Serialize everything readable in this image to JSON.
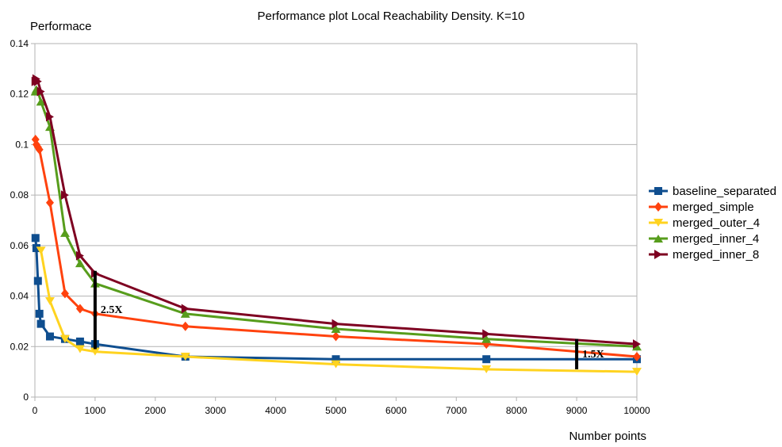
{
  "chart_data": {
    "type": "line",
    "title": "Performance plot Local Reachability Density. K=10",
    "xlabel": "Number points",
    "ylabel": "Performace",
    "xlim": [
      0,
      10000
    ],
    "ylim": [
      0,
      0.14
    ],
    "x_ticks": [
      "0",
      "1000",
      "2000",
      "3000",
      "4000",
      "5000",
      "6000",
      "7000",
      "8000",
      "9000",
      "10000"
    ],
    "y_ticks": [
      "0",
      "0.02",
      "0.04",
      "0.06",
      "0.08",
      "0.1",
      "0.12",
      "0.14"
    ],
    "grid": "horizontal",
    "legend_position": "right",
    "series": [
      {
        "name": "baseline_separated",
        "color": "#0f4e8f",
        "marker": "square",
        "points": [
          [
            10,
            0.063
          ],
          [
            25,
            0.059
          ],
          [
            50,
            0.046
          ],
          [
            75,
            0.033
          ],
          [
            100,
            0.029
          ],
          [
            250,
            0.024
          ],
          [
            500,
            0.023
          ],
          [
            750,
            0.022
          ],
          [
            1000,
            0.021
          ],
          [
            2500,
            0.016
          ],
          [
            5000,
            0.015
          ],
          [
            7500,
            0.015
          ],
          [
            10000,
            0.015
          ]
        ]
      },
      {
        "name": "merged_simple",
        "color": "#ff420e",
        "marker": "diamond",
        "points": [
          [
            10,
            0.102
          ],
          [
            25,
            0.1
          ],
          [
            50,
            0.099
          ],
          [
            75,
            0.098
          ],
          [
            250,
            0.077
          ],
          [
            500,
            0.041
          ],
          [
            750,
            0.035
          ],
          [
            1000,
            0.033
          ],
          [
            2500,
            0.028
          ],
          [
            5000,
            0.024
          ],
          [
            7500,
            0.021
          ],
          [
            10000,
            0.016
          ]
        ]
      },
      {
        "name": "merged_outer_4",
        "color": "#ffd320",
        "marker": "triangle-down",
        "points": [
          [
            100,
            0.058
          ],
          [
            250,
            0.038
          ],
          [
            500,
            0.023
          ],
          [
            750,
            0.019
          ],
          [
            1000,
            0.018
          ],
          [
            2500,
            0.016
          ],
          [
            5000,
            0.013
          ],
          [
            7500,
            0.011
          ],
          [
            10000,
            0.01
          ]
        ]
      },
      {
        "name": "merged_inner_4",
        "color": "#579d1c",
        "marker": "triangle-up",
        "points": [
          [
            10,
            0.121
          ],
          [
            25,
            0.122
          ],
          [
            50,
            0.121
          ],
          [
            100,
            0.117
          ],
          [
            250,
            0.107
          ],
          [
            500,
            0.065
          ],
          [
            750,
            0.053
          ],
          [
            1000,
            0.045
          ],
          [
            2500,
            0.033
          ],
          [
            5000,
            0.027
          ],
          [
            7500,
            0.023
          ],
          [
            10000,
            0.02
          ]
        ]
      },
      {
        "name": "merged_inner_8",
        "color": "#7e0021",
        "marker": "triangle-right",
        "points": [
          [
            10,
            0.125
          ],
          [
            25,
            0.126
          ],
          [
            50,
            0.125
          ],
          [
            100,
            0.121
          ],
          [
            250,
            0.111
          ],
          [
            500,
            0.08
          ],
          [
            750,
            0.056
          ],
          [
            1000,
            0.049
          ],
          [
            2500,
            0.035
          ],
          [
            5000,
            0.029
          ],
          [
            7500,
            0.025
          ],
          [
            10000,
            0.021
          ]
        ]
      }
    ],
    "annotations": [
      {
        "text": "2.5X",
        "x": 1000,
        "y_from": 0.019,
        "y_to": 0.05
      },
      {
        "text": "1.5X",
        "x": 9000,
        "y_from": 0.011,
        "y_to": 0.023
      }
    ]
  }
}
